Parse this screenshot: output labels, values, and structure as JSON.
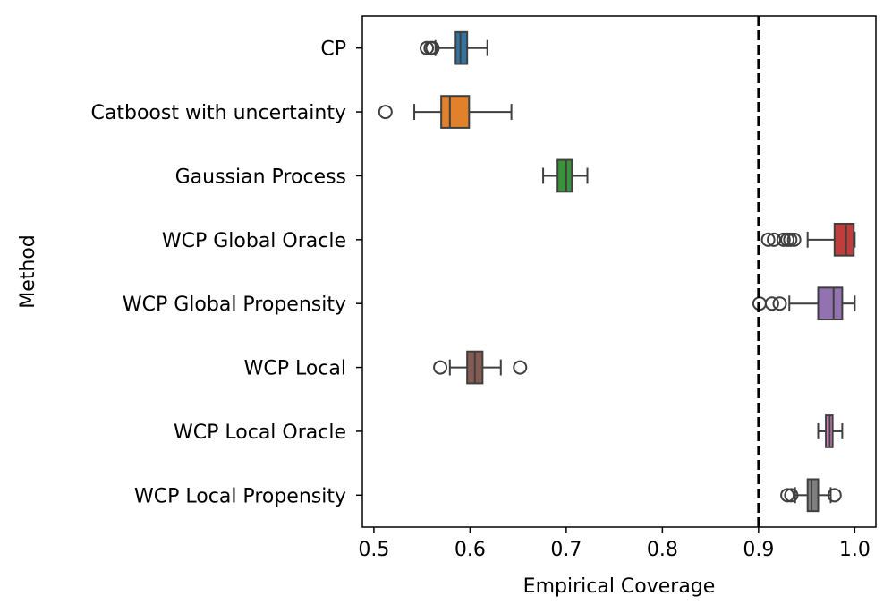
{
  "chart_data": {
    "type": "boxplot",
    "orientation": "horizontal",
    "xlabel": "Empirical Coverage",
    "ylabel": "Method",
    "xlim": [
      0.488,
      1.022
    ],
    "xticks": [
      0.5,
      0.6,
      0.7,
      0.8,
      0.9,
      1.0
    ],
    "xtick_labels": [
      "0.5",
      "0.6",
      "0.7",
      "0.8",
      "0.9",
      "1.0"
    ],
    "reference_line": {
      "x": 0.9,
      "style": "dashed",
      "color": "#000000"
    },
    "series": [
      {
        "name": "CP",
        "color": "#3274a1",
        "whisker_low": 0.564,
        "q1": 0.585,
        "median": 0.59,
        "q3": 0.597,
        "whisker_high": 0.618,
        "outliers": [
          0.555,
          0.559,
          0.561
        ]
      },
      {
        "name": "Catboost with uncertainty",
        "color": "#e1812c",
        "whisker_low": 0.542,
        "q1": 0.57,
        "median": 0.579,
        "q3": 0.599,
        "whisker_high": 0.643,
        "outliers": [
          0.512
        ]
      },
      {
        "name": "Gaussian Process",
        "color": "#3a923a",
        "whisker_low": 0.676,
        "q1": 0.691,
        "median": 0.7,
        "q3": 0.706,
        "whisker_high": 0.722,
        "outliers": []
      },
      {
        "name": "WCP Global Oracle",
        "color": "#c03d3e",
        "whisker_low": 0.951,
        "q1": 0.979,
        "median": 0.991,
        "q3": 0.999,
        "whisker_high": 1.0,
        "outliers": [
          0.91,
          0.916,
          0.926,
          0.93,
          0.933,
          0.937
        ]
      },
      {
        "name": "WCP Global Propensity",
        "color": "#9372b2",
        "whisker_low": 0.932,
        "q1": 0.962,
        "median": 0.978,
        "q3": 0.987,
        "whisker_high": 1.0,
        "outliers": [
          0.901,
          0.914,
          0.922
        ]
      },
      {
        "name": "WCP Local",
        "color": "#845b53",
        "whisker_low": 0.579,
        "q1": 0.597,
        "median": 0.605,
        "q3": 0.613,
        "whisker_high": 0.632,
        "outliers": [
          0.569,
          0.652
        ]
      },
      {
        "name": "WCP Local Oracle",
        "color": "#d684bd",
        "whisker_low": 0.962,
        "q1": 0.97,
        "median": 0.974,
        "q3": 0.977,
        "whisker_high": 0.987,
        "outliers": []
      },
      {
        "name": "WCP Local Propensity",
        "color": "#7f7f7f",
        "whisker_low": 0.938,
        "q1": 0.951,
        "median": 0.955,
        "q3": 0.962,
        "whisker_high": 0.975,
        "outliers": [
          0.93,
          0.934,
          0.979
        ]
      }
    ]
  }
}
